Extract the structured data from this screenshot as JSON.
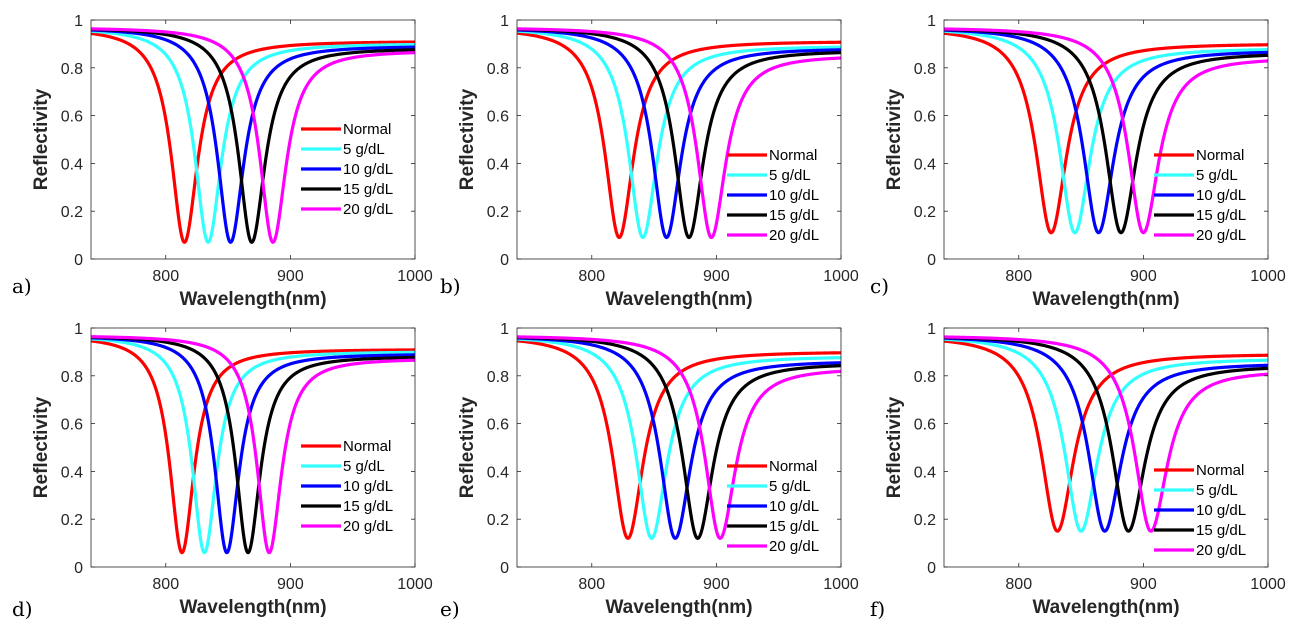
{
  "colors": {
    "Normal": "#ff0000",
    "5 g/dL": "#33ffff",
    "10 g/dL": "#0000ff",
    "15 g/dL": "#000000",
    "20 g/dL": "#ff00ff",
    "axis": "#262626",
    "background": "#ffffff"
  },
  "chart_data": [
    {
      "panel": "a)",
      "type": "line",
      "xlabel": "Wavelength(nm)",
      "ylabel": "Reflectivity",
      "xlim": [
        740,
        1000
      ],
      "ylim": [
        0,
        1
      ],
      "xticks": [
        "800",
        "900",
        "1000"
      ],
      "yticks": [
        "0",
        "0.2",
        "0.4",
        "0.6",
        "0.8",
        "1"
      ],
      "legend_position": "center-right",
      "grid": false,
      "series": [
        {
          "name": "Normal",
          "min_x": 815,
          "min_y": 0.07,
          "plateau": 0.97,
          "end": 0.91,
          "width": 13
        },
        {
          "name": "5 g/dL",
          "min_x": 834,
          "min_y": 0.07,
          "plateau": 0.97,
          "end": 0.9,
          "width": 13
        },
        {
          "name": "10 g/dL",
          "min_x": 852,
          "min_y": 0.07,
          "plateau": 0.97,
          "end": 0.89,
          "width": 13
        },
        {
          "name": "15 g/dL",
          "min_x": 869,
          "min_y": 0.07,
          "plateau": 0.97,
          "end": 0.88,
          "width": 13
        },
        {
          "name": "20 g/dL",
          "min_x": 886,
          "min_y": 0.07,
          "plateau": 0.97,
          "end": 0.87,
          "width": 13
        }
      ]
    },
    {
      "panel": "b)",
      "type": "line",
      "xlabel": "Wavelength(nm)",
      "ylabel": "Reflectivity",
      "xlim": [
        740,
        1000
      ],
      "ylim": [
        0,
        1
      ],
      "xticks": [
        "800",
        "900",
        "1000"
      ],
      "yticks": [
        "0",
        "0.2",
        "0.4",
        "0.6",
        "0.8",
        "1"
      ],
      "legend_position": "lower-right",
      "grid": false,
      "series": [
        {
          "name": "Normal",
          "min_x": 822,
          "min_y": 0.09,
          "plateau": 0.97,
          "end": 0.91,
          "width": 14
        },
        {
          "name": "5 g/dL",
          "min_x": 841,
          "min_y": 0.09,
          "plateau": 0.97,
          "end": 0.89,
          "width": 14
        },
        {
          "name": "10 g/dL",
          "min_x": 860,
          "min_y": 0.09,
          "plateau": 0.97,
          "end": 0.88,
          "width": 14
        },
        {
          "name": "15 g/dL",
          "min_x": 878,
          "min_y": 0.09,
          "plateau": 0.97,
          "end": 0.87,
          "width": 14
        },
        {
          "name": "20 g/dL",
          "min_x": 896,
          "min_y": 0.09,
          "plateau": 0.97,
          "end": 0.85,
          "width": 14
        }
      ]
    },
    {
      "panel": "c)",
      "type": "line",
      "xlabel": "Wavelength(nm)",
      "ylabel": "Reflectivity",
      "xlim": [
        740,
        1000
      ],
      "ylim": [
        0,
        1
      ],
      "xticks": [
        "800",
        "900",
        "1000"
      ],
      "yticks": [
        "0",
        "0.2",
        "0.4",
        "0.6",
        "0.8",
        "1"
      ],
      "legend_position": "lower-right",
      "grid": false,
      "series": [
        {
          "name": "Normal",
          "min_x": 826,
          "min_y": 0.11,
          "plateau": 0.97,
          "end": 0.9,
          "width": 15
        },
        {
          "name": "5 g/dL",
          "min_x": 845,
          "min_y": 0.11,
          "plateau": 0.97,
          "end": 0.88,
          "width": 15
        },
        {
          "name": "10 g/dL",
          "min_x": 864,
          "min_y": 0.11,
          "plateau": 0.97,
          "end": 0.87,
          "width": 15
        },
        {
          "name": "15 g/dL",
          "min_x": 882,
          "min_y": 0.11,
          "plateau": 0.97,
          "end": 0.86,
          "width": 15
        },
        {
          "name": "20 g/dL",
          "min_x": 900,
          "min_y": 0.11,
          "plateau": 0.97,
          "end": 0.84,
          "width": 15
        }
      ]
    },
    {
      "panel": "d)",
      "type": "line",
      "xlabel": "Wavelength(nm)",
      "ylabel": "Reflectivity",
      "xlim": [
        740,
        1000
      ],
      "ylim": [
        0,
        1
      ],
      "xticks": [
        "800",
        "900",
        "1000"
      ],
      "yticks": [
        "0",
        "0.2",
        "0.4",
        "0.6",
        "0.8",
        "1"
      ],
      "legend_position": "center-right",
      "grid": false,
      "series": [
        {
          "name": "Normal",
          "min_x": 813,
          "min_y": 0.06,
          "plateau": 0.97,
          "end": 0.91,
          "width": 12
        },
        {
          "name": "5 g/dL",
          "min_x": 831,
          "min_y": 0.06,
          "plateau": 0.97,
          "end": 0.9,
          "width": 12
        },
        {
          "name": "10 g/dL",
          "min_x": 849,
          "min_y": 0.06,
          "plateau": 0.97,
          "end": 0.89,
          "width": 12
        },
        {
          "name": "15 g/dL",
          "min_x": 866,
          "min_y": 0.06,
          "plateau": 0.97,
          "end": 0.88,
          "width": 12
        },
        {
          "name": "20 g/dL",
          "min_x": 883,
          "min_y": 0.06,
          "plateau": 0.97,
          "end": 0.87,
          "width": 12
        }
      ]
    },
    {
      "panel": "e)",
      "type": "line",
      "xlabel": "Wavelength(nm)",
      "ylabel": "Reflectivity",
      "xlim": [
        740,
        1000
      ],
      "ylim": [
        0,
        1
      ],
      "xticks": [
        "800",
        "900",
        "1000"
      ],
      "yticks": [
        "0",
        "0.2",
        "0.4",
        "0.6",
        "0.8",
        "1"
      ],
      "legend_position": "lower-right",
      "grid": false,
      "series": [
        {
          "name": "Normal",
          "min_x": 829,
          "min_y": 0.12,
          "plateau": 0.97,
          "end": 0.9,
          "width": 15
        },
        {
          "name": "5 g/dL",
          "min_x": 848,
          "min_y": 0.12,
          "plateau": 0.97,
          "end": 0.88,
          "width": 15
        },
        {
          "name": "10 g/dL",
          "min_x": 867,
          "min_y": 0.12,
          "plateau": 0.97,
          "end": 0.86,
          "width": 15
        },
        {
          "name": "15 g/dL",
          "min_x": 885,
          "min_y": 0.12,
          "plateau": 0.97,
          "end": 0.85,
          "width": 15
        },
        {
          "name": "20 g/dL",
          "min_x": 903,
          "min_y": 0.12,
          "plateau": 0.97,
          "end": 0.83,
          "width": 15
        }
      ]
    },
    {
      "panel": "f)",
      "type": "line",
      "xlabel": "Wavelength(nm)",
      "ylabel": "Reflectivity",
      "xlim": [
        740,
        1000
      ],
      "ylim": [
        0,
        1
      ],
      "xticks": [
        "800",
        "900",
        "1000"
      ],
      "yticks": [
        "0",
        "0.2",
        "0.4",
        "0.6",
        "0.8",
        "1"
      ],
      "legend_position": "lower-right",
      "grid": false,
      "series": [
        {
          "name": "Normal",
          "min_x": 831,
          "min_y": 0.15,
          "plateau": 0.97,
          "end": 0.89,
          "width": 16
        },
        {
          "name": "5 g/dL",
          "min_x": 850,
          "min_y": 0.15,
          "plateau": 0.97,
          "end": 0.87,
          "width": 16
        },
        {
          "name": "10 g/dL",
          "min_x": 869,
          "min_y": 0.15,
          "plateau": 0.97,
          "end": 0.85,
          "width": 16
        },
        {
          "name": "15 g/dL",
          "min_x": 888,
          "min_y": 0.15,
          "plateau": 0.97,
          "end": 0.84,
          "width": 16
        },
        {
          "name": "20 g/dL",
          "min_x": 906,
          "min_y": 0.15,
          "plateau": 0.97,
          "end": 0.82,
          "width": 16
        }
      ]
    }
  ]
}
